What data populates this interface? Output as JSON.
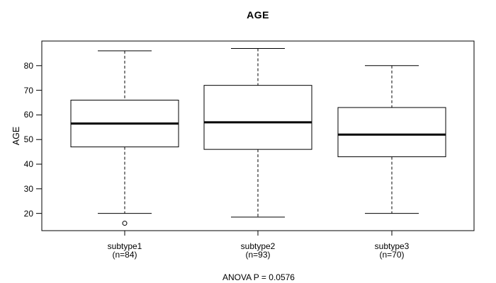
{
  "chart_data": {
    "type": "boxplot",
    "title": "AGE",
    "ylabel": "AGE",
    "annotation": "ANOVA P = 0.0576",
    "categories": [
      "subtype1",
      "subtype2",
      "subtype3"
    ],
    "category_sublabels": [
      "(n=84)",
      "(n=93)",
      "(n=70)"
    ],
    "ylim": [
      13,
      90
    ],
    "yticks": [
      20,
      30,
      40,
      50,
      60,
      70,
      80
    ],
    "grid": false,
    "legend": "none",
    "series": [
      {
        "name": "subtype1",
        "n": 84,
        "whisker_low": 20,
        "q1": 47,
        "median": 56.5,
        "q3": 66,
        "whisker_high": 86,
        "outliers": [
          16
        ]
      },
      {
        "name": "subtype2",
        "n": 93,
        "whisker_low": 18.5,
        "q1": 46,
        "median": 57,
        "q3": 72,
        "whisker_high": 87,
        "outliers": []
      },
      {
        "name": "subtype3",
        "n": 70,
        "whisker_low": 20,
        "q1": 43,
        "median": 52,
        "q3": 63,
        "whisker_high": 80,
        "outliers": []
      }
    ],
    "colors": {
      "line": "#000000",
      "box_fill": "#ffffff",
      "background": "#ffffff"
    }
  }
}
